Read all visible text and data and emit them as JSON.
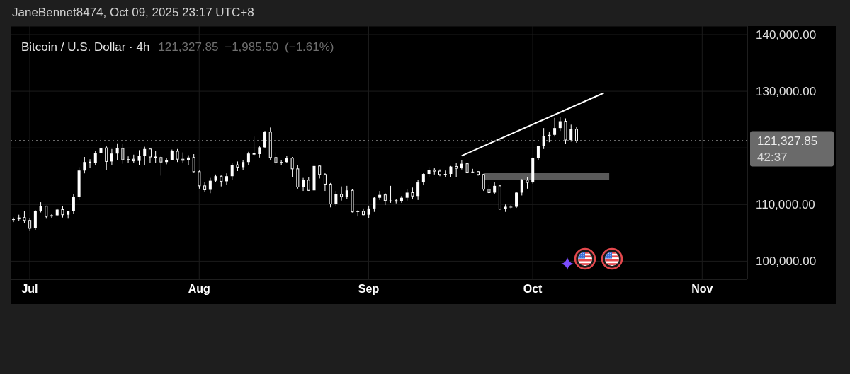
{
  "chart_data": {
    "type": "candlestick",
    "title": "Bitcoin / U.S. Dollar · 4h",
    "subtitle": "121,327.85 −1,985.50 (−1.61%)",
    "annotations": [
      "JaneBennet8474, Oct 09, 2025 23:17 UTC+8",
      "42:37"
    ],
    "x": [
      "2025-06-28",
      "2025-06-29",
      "2025-06-30",
      "2025-07-01",
      "2025-07-02",
      "2025-07-03",
      "2025-07-04",
      "2025-07-05",
      "2025-07-06",
      "2025-07-07",
      "2025-07-08",
      "2025-07-09",
      "2025-07-10",
      "2025-07-11",
      "2025-07-12",
      "2025-07-13",
      "2025-07-14",
      "2025-07-15",
      "2025-07-16",
      "2025-07-17",
      "2025-07-18",
      "2025-07-19",
      "2025-07-20",
      "2025-07-21",
      "2025-07-22",
      "2025-07-23",
      "2025-07-24",
      "2025-07-25",
      "2025-07-26",
      "2025-07-27",
      "2025-07-28",
      "2025-07-29",
      "2025-07-30",
      "2025-07-31",
      "2025-08-01",
      "2025-08-02",
      "2025-08-03",
      "2025-08-04",
      "2025-08-05",
      "2025-08-06",
      "2025-08-07",
      "2025-08-08",
      "2025-08-09",
      "2025-08-10",
      "2025-08-11",
      "2025-08-12",
      "2025-08-13",
      "2025-08-14",
      "2025-08-15",
      "2025-08-16",
      "2025-08-17",
      "2025-08-18",
      "2025-08-19",
      "2025-08-20",
      "2025-08-21",
      "2025-08-22",
      "2025-08-23",
      "2025-08-24",
      "2025-08-25",
      "2025-08-26",
      "2025-08-27",
      "2025-08-28",
      "2025-08-29",
      "2025-08-30",
      "2025-08-31",
      "2025-09-01",
      "2025-09-02",
      "2025-09-03",
      "2025-09-04",
      "2025-09-05",
      "2025-09-06",
      "2025-09-07",
      "2025-09-08",
      "2025-09-09",
      "2025-09-10",
      "2025-09-11",
      "2025-09-12",
      "2025-09-13",
      "2025-09-14",
      "2025-09-15",
      "2025-09-16",
      "2025-09-17",
      "2025-09-18",
      "2025-09-19",
      "2025-09-20",
      "2025-09-21",
      "2025-09-22",
      "2025-09-23",
      "2025-09-24",
      "2025-09-25",
      "2025-09-26",
      "2025-09-27",
      "2025-09-28",
      "2025-09-29",
      "2025-09-30",
      "2025-10-01",
      "2025-10-02",
      "2025-10-03",
      "2025-10-04",
      "2025-10-05",
      "2025-10-06",
      "2025-10-07",
      "2025-10-08",
      "2025-10-09"
    ],
    "ohlc": [
      [
        107300,
        107700,
        106900,
        107400
      ],
      [
        107400,
        108200,
        107100,
        107700
      ],
      [
        107700,
        108800,
        106700,
        107200
      ],
      [
        107200,
        107600,
        105300,
        105800
      ],
      [
        105800,
        109000,
        105500,
        108800
      ],
      [
        108800,
        110400,
        108600,
        109700
      ],
      [
        109700,
        109800,
        107500,
        107900
      ],
      [
        107900,
        108400,
        107600,
        108100
      ],
      [
        108100,
        109300,
        107900,
        109100
      ],
      [
        109100,
        109700,
        107700,
        108200
      ],
      [
        108200,
        108900,
        107500,
        108900
      ],
      [
        108900,
        111900,
        108400,
        111300
      ],
      [
        111300,
        116600,
        110800,
        116000
      ],
      [
        116000,
        118400,
        115500,
        117500
      ],
      [
        117500,
        118000,
        116400,
        117400
      ],
      [
        117400,
        119400,
        116900,
        119100
      ],
      [
        119100,
        121900,
        118600,
        120000
      ],
      [
        120000,
        120300,
        116100,
        117600
      ],
      [
        117600,
        119800,
        117000,
        119000
      ],
      [
        119000,
        120800,
        117800,
        119900
      ],
      [
        119900,
        120700,
        117200,
        117900
      ],
      [
        117900,
        118500,
        117400,
        118000
      ],
      [
        118000,
        118800,
        117300,
        117700
      ],
      [
        117700,
        119600,
        117000,
        118600
      ],
      [
        118600,
        120200,
        116900,
        119800
      ],
      [
        119800,
        120000,
        117400,
        118400
      ],
      [
        118400,
        119500,
        117400,
        118300
      ],
      [
        118300,
        118500,
        115100,
        117500
      ],
      [
        117500,
        118200,
        117100,
        117900
      ],
      [
        117900,
        119700,
        117800,
        119400
      ],
      [
        119400,
        119800,
        117500,
        118000
      ],
      [
        118000,
        119200,
        117400,
        117800
      ],
      [
        117800,
        118700,
        116900,
        118300
      ],
      [
        118300,
        118900,
        115700,
        115800
      ],
      [
        115800,
        116000,
        112800,
        113300
      ],
      [
        113300,
        114000,
        112200,
        112600
      ],
      [
        112600,
        114700,
        112000,
        114200
      ],
      [
        114200,
        115300,
        114000,
        115000
      ],
      [
        115000,
        115100,
        113200,
        114100
      ],
      [
        114100,
        115500,
        113500,
        115000
      ],
      [
        115000,
        117400,
        114300,
        117000
      ],
      [
        117000,
        117600,
        115900,
        116600
      ],
      [
        116600,
        117800,
        116100,
        117500
      ],
      [
        117500,
        119300,
        117000,
        119000
      ],
      [
        119000,
        122000,
        118600,
        118900
      ],
      [
        118900,
        120400,
        118300,
        120100
      ],
      [
        120100,
        123000,
        119900,
        122800
      ],
      [
        122800,
        123600,
        117800,
        118300
      ],
      [
        118300,
        119200,
        116900,
        117400
      ],
      [
        117400,
        117900,
        117000,
        117500
      ],
      [
        117500,
        118600,
        117300,
        118200
      ],
      [
        118200,
        118400,
        114800,
        116300
      ],
      [
        116300,
        117000,
        112800,
        113100
      ],
      [
        113100,
        114700,
        112400,
        114300
      ],
      [
        114300,
        114900,
        112400,
        112500
      ],
      [
        112500,
        117200,
        112400,
        116800
      ],
      [
        116800,
        117000,
        114600,
        115300
      ],
      [
        115300,
        115600,
        112400,
        113600
      ],
      [
        113600,
        113800,
        109500,
        110100
      ],
      [
        110100,
        112400,
        109800,
        111800
      ],
      [
        111800,
        113200,
        110700,
        111400
      ],
      [
        111400,
        113300,
        111000,
        112500
      ],
      [
        112500,
        112700,
        108600,
        108700
      ],
      [
        108700,
        109000,
        107900,
        108800
      ],
      [
        108800,
        109300,
        108100,
        108200
      ],
      [
        108200,
        109800,
        107600,
        109300
      ],
      [
        109300,
        111300,
        108700,
        111200
      ],
      [
        111200,
        112400,
        110800,
        111700
      ],
      [
        111700,
        112000,
        109900,
        110700
      ],
      [
        110700,
        113300,
        110300,
        110700
      ],
      [
        110700,
        111000,
        110200,
        110600
      ],
      [
        110600,
        111500,
        110300,
        111200
      ],
      [
        111200,
        112700,
        110700,
        112100
      ],
      [
        112100,
        113000,
        110900,
        111500
      ],
      [
        111500,
        114300,
        110800,
        113900
      ],
      [
        113900,
        115500,
        113400,
        115400
      ],
      [
        115400,
        116600,
        114800,
        116100
      ],
      [
        116100,
        116400,
        115300,
        115900
      ],
      [
        115900,
        116200,
        115000,
        115300
      ],
      [
        115300,
        116000,
        114800,
        115400
      ],
      [
        115400,
        116800,
        114900,
        116700
      ],
      [
        116700,
        117300,
        114800,
        116400
      ],
      [
        116400,
        117900,
        116200,
        117200
      ],
      [
        117200,
        117400,
        115500,
        115700
      ],
      [
        115700,
        116300,
        115600,
        115800
      ],
      [
        115800,
        115900,
        115100,
        115300
      ],
      [
        115300,
        115400,
        112400,
        112700
      ],
      [
        112700,
        113500,
        111900,
        112100
      ],
      [
        112100,
        113900,
        111900,
        113300
      ],
      [
        113300,
        113400,
        109100,
        109200
      ],
      [
        109200,
        110000,
        108700,
        109600
      ],
      [
        109600,
        109900,
        109300,
        109600
      ],
      [
        109600,
        112200,
        109400,
        112100
      ],
      [
        112100,
        114500,
        111600,
        114300
      ],
      [
        114300,
        114800,
        112800,
        113900
      ],
      [
        113900,
        118300,
        113700,
        118200
      ],
      [
        118200,
        120400,
        117900,
        120300
      ],
      [
        120300,
        123500,
        119800,
        122100
      ],
      [
        122100,
        122900,
        121000,
        122300
      ],
      [
        122300,
        125300,
        122000,
        123500
      ],
      [
        123500,
        125500,
        123000,
        124700
      ],
      [
        124700,
        125200,
        120700,
        121400
      ],
      [
        121400,
        124100,
        121100,
        123300
      ],
      [
        123300,
        123700,
        120900,
        121327.85
      ]
    ],
    "color": "#ffffff",
    "series": [
      {
        "type": "area",
        "x": [
          "2025-09-22",
          "2025-10-15"
        ],
        "values": [
          null,
          null
        ],
        "lower": [
          114400,
          114400
        ],
        "upper": [
          115600,
          115600
        ],
        "color": "#5a5a5a"
      },
      {
        "type": "line",
        "x": [
          "2025-09-18",
          "2025-10-14"
        ],
        "values": [
          118600,
          129700
        ],
        "color": "#ffffff"
      }
    ],
    "ref_lines": [
      {
        "axis": "y",
        "value": 121327.85,
        "label": "121,327.85",
        "color": "#6a6a6a",
        "line_style": "dotted"
      }
    ],
    "xlim": [
      "2025-06-27T12:00",
      "2025-11-09T06:00"
    ],
    "xticks": [
      {
        "value": "2025-07-01",
        "label": "Jul"
      },
      {
        "value": "2025-08-01",
        "label": "Aug"
      },
      {
        "value": "2025-09-01",
        "label": "Sep"
      },
      {
        "value": "2025-10-01",
        "label": "Oct"
      },
      {
        "value": "2025-11-01",
        "label": "Nov"
      }
    ],
    "ylim": [
      96800,
      141500
    ],
    "yticks": [
      {
        "value": 100000,
        "label": "100,000.00"
      },
      {
        "value": 110000,
        "label": "110,000.00"
      },
      {
        "value": 120000,
        "label": null
      },
      {
        "value": 130000,
        "label": "130,000.00"
      },
      {
        "value": 140000,
        "label": "140,000.00"
      }
    ],
    "grid": true
  }
}
